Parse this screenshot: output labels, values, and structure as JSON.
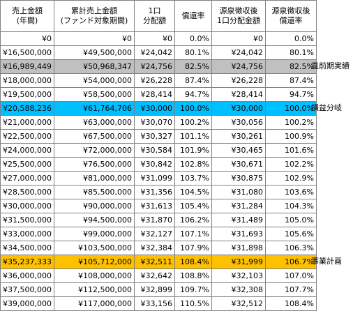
{
  "headers": [
    [
      "売上金額",
      "(年間)"
    ],
    [
      "累計売上金額",
      "(ファンド対象期間)"
    ],
    [
      "1口",
      "分配額"
    ],
    [
      "償還率"
    ],
    [
      "源泉徴収後",
      "1口分配金額"
    ],
    [
      "源泉徴収後",
      "償還率"
    ]
  ],
  "rows": [
    {
      "cells": [
        "¥0",
        "¥0",
        "¥0",
        "0.0%",
        "¥0",
        "0.0%"
      ],
      "highlight": "",
      "note": ""
    },
    {
      "cells": [
        "¥16,500,000",
        "¥49,500,000",
        "¥24,042",
        "80.1%",
        "¥24,042",
        "80.1%"
      ],
      "highlight": "",
      "note": ""
    },
    {
      "cells": [
        "¥16,989,449",
        "¥50,968,347",
        "¥24,756",
        "82.5%",
        "¥24,756",
        "82.5%"
      ],
      "highlight": "gray",
      "note": "直前期実績"
    },
    {
      "cells": [
        "¥18,000,000",
        "¥54,000,000",
        "¥26,228",
        "87.4%",
        "¥26,228",
        "87.4%"
      ],
      "highlight": "",
      "note": ""
    },
    {
      "cells": [
        "¥19,500,000",
        "¥58,500,000",
        "¥28,414",
        "94.7%",
        "¥28,414",
        "94.7%"
      ],
      "highlight": "",
      "note": ""
    },
    {
      "cells": [
        "¥20,588,236",
        "¥61,764,706",
        "¥30,000",
        "100.0%",
        "¥30,000",
        "100.0%"
      ],
      "highlight": "cyan",
      "note": "損益分岐"
    },
    {
      "cells": [
        "¥21,000,000",
        "¥63,000,000",
        "¥30,070",
        "100.2%",
        "¥30,056",
        "100.2%"
      ],
      "highlight": "",
      "note": ""
    },
    {
      "cells": [
        "¥22,500,000",
        "¥67,500,000",
        "¥30,327",
        "101.1%",
        "¥30,261",
        "100.9%"
      ],
      "highlight": "",
      "note": ""
    },
    {
      "cells": [
        "¥24,000,000",
        "¥72,000,000",
        "¥30,584",
        "101.9%",
        "¥30,465",
        "101.6%"
      ],
      "highlight": "",
      "note": ""
    },
    {
      "cells": [
        "¥25,500,000",
        "¥76,500,000",
        "¥30,842",
        "102.8%",
        "¥30,671",
        "102.2%"
      ],
      "highlight": "",
      "note": ""
    },
    {
      "cells": [
        "¥27,000,000",
        "¥81,000,000",
        "¥31,099",
        "103.7%",
        "¥30,875",
        "102.9%"
      ],
      "highlight": "",
      "note": ""
    },
    {
      "cells": [
        "¥28,500,000",
        "¥85,500,000",
        "¥31,356",
        "104.5%",
        "¥31,080",
        "103.6%"
      ],
      "highlight": "",
      "note": ""
    },
    {
      "cells": [
        "¥30,000,000",
        "¥90,000,000",
        "¥31,613",
        "105.4%",
        "¥31,284",
        "104.3%"
      ],
      "highlight": "",
      "note": ""
    },
    {
      "cells": [
        "¥31,500,000",
        "¥94,500,000",
        "¥31,870",
        "106.2%",
        "¥31,489",
        "105.0%"
      ],
      "highlight": "",
      "note": ""
    },
    {
      "cells": [
        "¥33,000,000",
        "¥99,000,000",
        "¥32,127",
        "107.1%",
        "¥31,693",
        "105.6%"
      ],
      "highlight": "",
      "note": ""
    },
    {
      "cells": [
        "¥34,500,000",
        "¥103,500,000",
        "¥32,384",
        "107.9%",
        "¥31,898",
        "106.3%"
      ],
      "highlight": "",
      "note": ""
    },
    {
      "cells": [
        "¥35,237,333",
        "¥105,712,000",
        "¥32,511",
        "108.4%",
        "¥31,999",
        "106.7%"
      ],
      "highlight": "gold",
      "note": "事業計画"
    },
    {
      "cells": [
        "¥36,000,000",
        "¥108,000,000",
        "¥32,642",
        "108.8%",
        "¥32,103",
        "107.0%"
      ],
      "highlight": "",
      "note": ""
    },
    {
      "cells": [
        "¥37,500,000",
        "¥112,500,000",
        "¥32,899",
        "109.7%",
        "¥32,308",
        "107.7%"
      ],
      "highlight": "",
      "note": ""
    },
    {
      "cells": [
        "¥39,000,000",
        "¥117,000,000",
        "¥33,156",
        "110.5%",
        "¥32,512",
        "108.4%"
      ],
      "highlight": "",
      "note": ""
    }
  ],
  "colors": {
    "gray": "#c0c0c0",
    "cyan": "#00bfff",
    "gold": "#ffc000",
    "grid": "#808080"
  }
}
